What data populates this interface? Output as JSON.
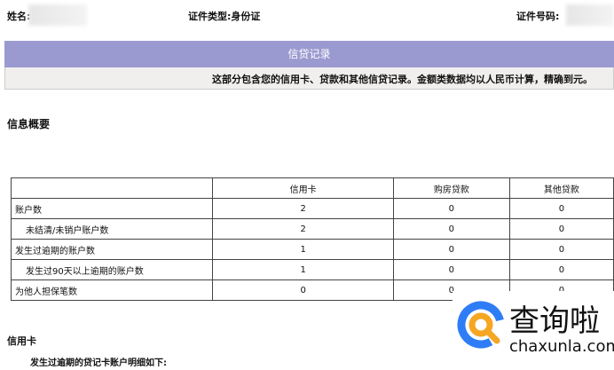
{
  "header": {
    "name_label": "姓名:",
    "id_type_label": "证件类型:",
    "id_type_value": "身份证",
    "id_number_label": "证件号码:"
  },
  "banner": {
    "title": "信贷记录",
    "subtitle": "这部分包含您的信用卡、贷款和其他信贷记录。金额类数据均以人民币计算，精确到元。"
  },
  "summary": {
    "title": "信息概要",
    "columns": [
      "",
      "信用卡",
      "购房贷款",
      "其他贷款"
    ],
    "rows": [
      {
        "label": "账户数",
        "values": [
          "2",
          "0",
          "0"
        ],
        "indent": false
      },
      {
        "label": "未结清/未销户账户数",
        "values": [
          "2",
          "0",
          "0"
        ],
        "indent": true
      },
      {
        "label": "发生过逾期的账户数",
        "values": [
          "1",
          "0",
          "0"
        ],
        "indent": false
      },
      {
        "label": "发生过90天以上逾期的账户数",
        "values": [
          "1",
          "0",
          "0"
        ],
        "indent": true
      },
      {
        "label": "为他人担保笔数",
        "values": [
          "0",
          "0",
          "0"
        ],
        "indent": false
      }
    ]
  },
  "credit_card": {
    "title": "信用卡",
    "subtitle": "发生过逾期的贷记卡账户明细如下:"
  },
  "watermark": {
    "text": "查询啦",
    "url": "chaxunla.com"
  }
}
